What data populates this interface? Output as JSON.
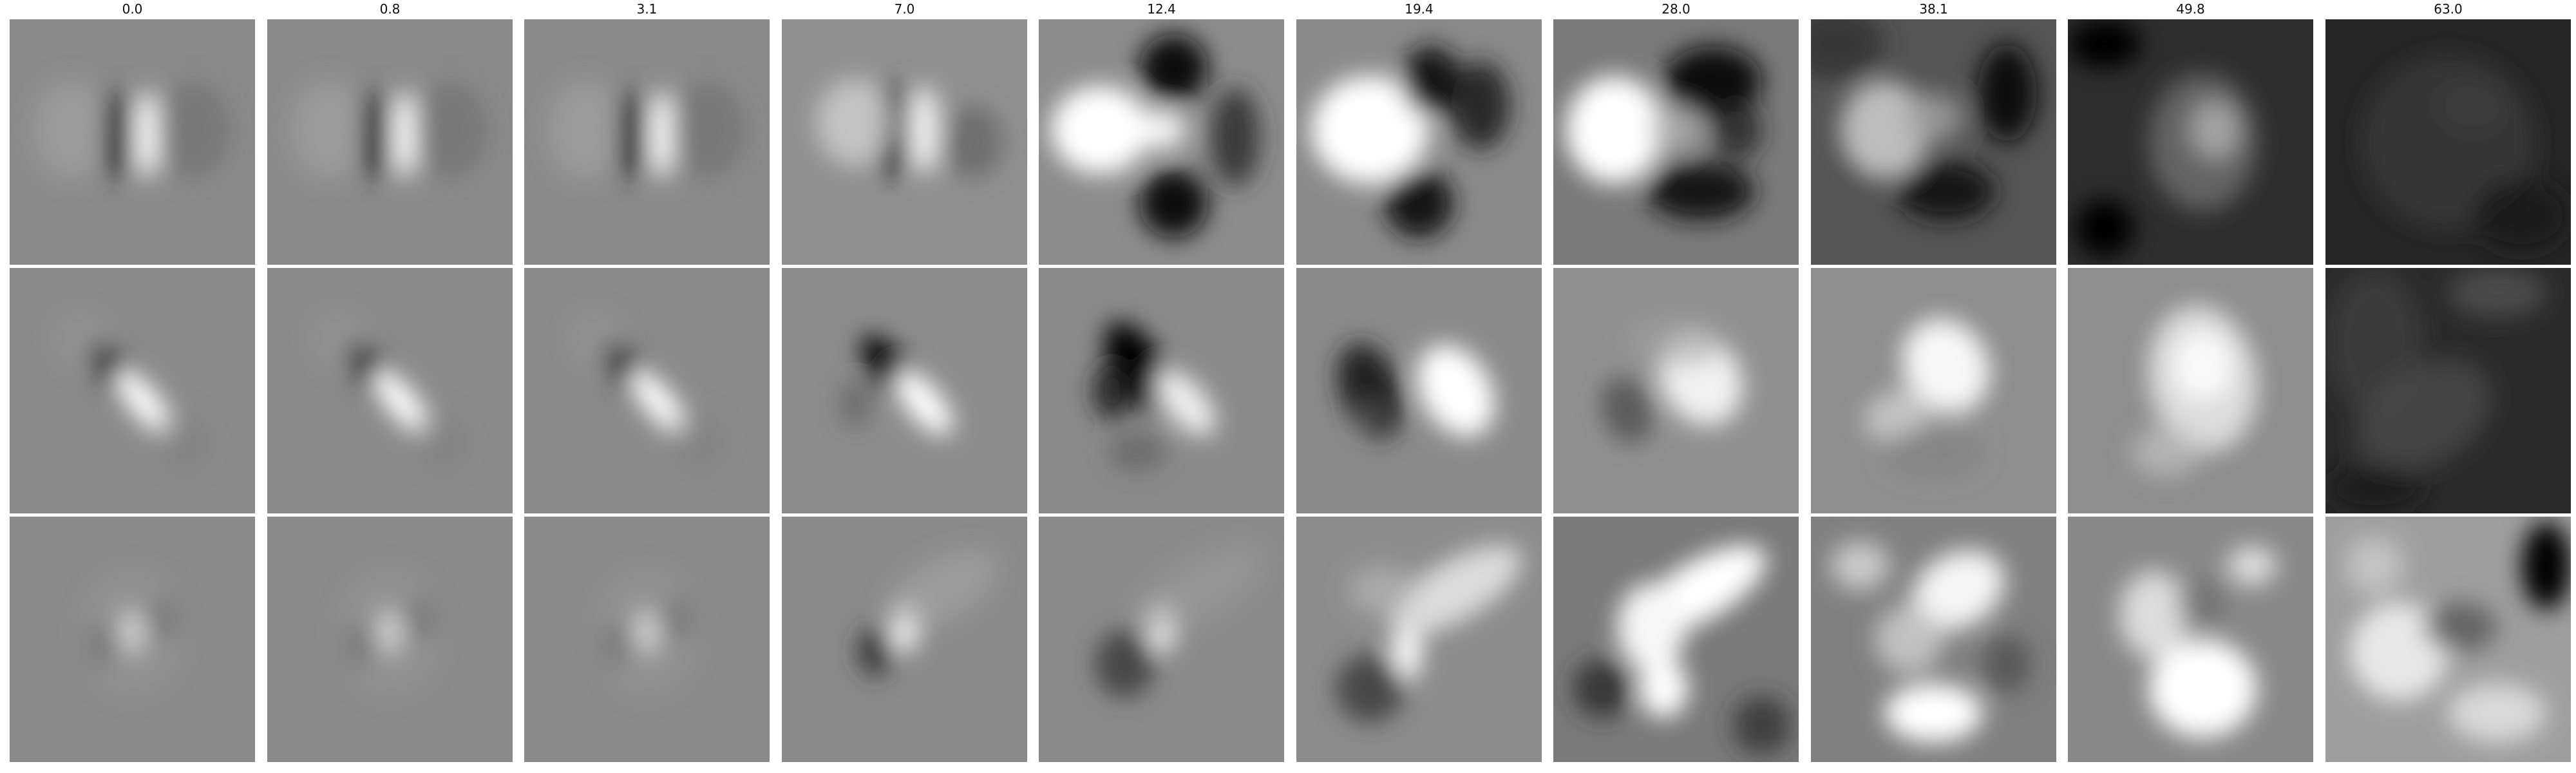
{
  "columns": [
    "0.0",
    "0.8",
    "3.1",
    "7.0",
    "12.4",
    "19.4",
    "28.0",
    "38.1",
    "49.8",
    "63.0"
  ],
  "rows": 3,
  "grid": [
    [
      {
        "bg": "#8a8a8a",
        "blobs": [
          [
            0.44,
            0.47,
            0.05,
            0.18,
            0,
            "#050505",
            1
          ],
          [
            0.56,
            0.47,
            0.05,
            0.18,
            0,
            "#ffffff",
            1
          ],
          [
            0.25,
            0.45,
            0.15,
            0.2,
            0,
            "#a6a6a6",
            0.6
          ],
          [
            0.75,
            0.45,
            0.15,
            0.2,
            0,
            "#6c6c6c",
            0.6
          ]
        ]
      },
      {
        "bg": "#8a8a8a",
        "blobs": [
          [
            0.44,
            0.47,
            0.05,
            0.18,
            0,
            "#050505",
            1
          ],
          [
            0.56,
            0.47,
            0.05,
            0.18,
            0,
            "#ffffff",
            1
          ],
          [
            0.25,
            0.45,
            0.15,
            0.2,
            0,
            "#a6a6a6",
            0.6
          ],
          [
            0.75,
            0.45,
            0.15,
            0.2,
            0,
            "#6c6c6c",
            0.6
          ]
        ]
      },
      {
        "bg": "#8a8a8a",
        "blobs": [
          [
            0.44,
            0.47,
            0.05,
            0.18,
            0,
            "#050505",
            1
          ],
          [
            0.56,
            0.47,
            0.05,
            0.18,
            0,
            "#ffffff",
            1
          ],
          [
            0.25,
            0.45,
            0.15,
            0.2,
            0,
            "#a6a6a6",
            0.6
          ],
          [
            0.75,
            0.45,
            0.15,
            0.2,
            0,
            "#6c6c6c",
            0.6
          ]
        ]
      },
      {
        "bg": "#909090",
        "blobs": [
          [
            0.45,
            0.45,
            0.06,
            0.2,
            0,
            "#101010",
            1
          ],
          [
            0.58,
            0.45,
            0.06,
            0.18,
            0,
            "#f5f5f5",
            1
          ],
          [
            0.3,
            0.42,
            0.16,
            0.18,
            0,
            "#d0d0d0",
            0.8
          ],
          [
            0.78,
            0.5,
            0.12,
            0.15,
            0,
            "#606060",
            0.7
          ]
        ]
      },
      {
        "bg": "#8c8c8c",
        "blobs": [
          [
            0.55,
            0.2,
            0.14,
            0.14,
            0,
            "#0a0a0a",
            1
          ],
          [
            0.55,
            0.75,
            0.14,
            0.14,
            0,
            "#0a0a0a",
            1
          ],
          [
            0.25,
            0.45,
            0.2,
            0.18,
            0,
            "#ffffff",
            1
          ],
          [
            0.5,
            0.45,
            0.1,
            0.08,
            0,
            "#ffffff",
            0.9
          ],
          [
            0.8,
            0.48,
            0.1,
            0.2,
            0,
            "#303030",
            0.9
          ]
        ]
      },
      {
        "bg": "#8a8a8a",
        "blobs": [
          [
            0.3,
            0.45,
            0.24,
            0.22,
            0,
            "#ffffff",
            1
          ],
          [
            0.55,
            0.25,
            0.12,
            0.14,
            0,
            "#151515",
            1
          ],
          [
            0.75,
            0.35,
            0.12,
            0.18,
            0,
            "#202020",
            0.9
          ],
          [
            0.5,
            0.75,
            0.14,
            0.14,
            0,
            "#151515",
            1
          ]
        ]
      },
      {
        "bg": "#7a7a7a",
        "blobs": [
          [
            0.25,
            0.45,
            0.2,
            0.22,
            0,
            "#ffffff",
            1
          ],
          [
            0.65,
            0.25,
            0.2,
            0.14,
            0,
            "#101010",
            1
          ],
          [
            0.6,
            0.7,
            0.22,
            0.12,
            0,
            "#151515",
            1
          ],
          [
            0.75,
            0.45,
            0.1,
            0.12,
            0,
            "#202020",
            0.8
          ],
          [
            0.5,
            0.45,
            0.1,
            0.1,
            0,
            "#b0b0b0",
            0.8
          ]
        ]
      },
      {
        "bg": "#555555",
        "blobs": [
          [
            0.3,
            0.45,
            0.18,
            0.2,
            0,
            "#bdbdbd",
            1
          ],
          [
            0.8,
            0.3,
            0.12,
            0.2,
            0,
            "#0a0a0a",
            1
          ],
          [
            0.55,
            0.7,
            0.2,
            0.12,
            0,
            "#151515",
            1
          ],
          [
            0.5,
            0.4,
            0.12,
            0.1,
            0,
            "#a0a0a0",
            0.8
          ],
          [
            0.1,
            0.1,
            0.2,
            0.15,
            0,
            "#303030",
            0.8
          ]
        ]
      },
      {
        "bg": "#2e2e2e",
        "blobs": [
          [
            0.55,
            0.5,
            0.22,
            0.28,
            0,
            "#6a6a6a",
            0.9
          ],
          [
            0.6,
            0.45,
            0.1,
            0.12,
            0,
            "#aaaaaa",
            0.9
          ],
          [
            0.15,
            0.85,
            0.12,
            0.12,
            0,
            "#000000",
            1
          ],
          [
            0.15,
            0.1,
            0.15,
            0.1,
            0,
            "#000000",
            1
          ]
        ]
      },
      {
        "bg": "#262626",
        "blobs": [
          [
            0.5,
            0.5,
            0.35,
            0.35,
            0,
            "#363636",
            0.9
          ],
          [
            0.6,
            0.35,
            0.15,
            0.12,
            0,
            "#3e3e3e",
            0.8
          ],
          [
            0.8,
            0.8,
            0.2,
            0.15,
            0,
            "#1a1a1a",
            0.8
          ]
        ]
      }
    ],
    [
      {
        "bg": "#8a8a8a",
        "blobs": [
          [
            0.44,
            0.44,
            0.06,
            0.17,
            -40,
            "#000000",
            1
          ],
          [
            0.55,
            0.55,
            0.06,
            0.17,
            -40,
            "#ffffff",
            1
          ],
          [
            0.3,
            0.3,
            0.1,
            0.12,
            -40,
            "#9a9a9a",
            0.5
          ],
          [
            0.7,
            0.7,
            0.1,
            0.12,
            -40,
            "#7a7a7a",
            0.5
          ]
        ]
      },
      {
        "bg": "#8a8a8a",
        "blobs": [
          [
            0.44,
            0.44,
            0.06,
            0.17,
            -40,
            "#000000",
            1
          ],
          [
            0.55,
            0.55,
            0.06,
            0.17,
            -40,
            "#ffffff",
            1
          ],
          [
            0.3,
            0.3,
            0.1,
            0.12,
            -40,
            "#9a9a9a",
            0.5
          ],
          [
            0.7,
            0.7,
            0.1,
            0.12,
            -40,
            "#7a7a7a",
            0.5
          ]
        ]
      },
      {
        "bg": "#8a8a8a",
        "blobs": [
          [
            0.44,
            0.44,
            0.06,
            0.17,
            -40,
            "#000000",
            1
          ],
          [
            0.55,
            0.55,
            0.06,
            0.17,
            -40,
            "#ffffff",
            1
          ],
          [
            0.3,
            0.3,
            0.1,
            0.12,
            -40,
            "#9a9a9a",
            0.5
          ],
          [
            0.7,
            0.7,
            0.1,
            0.12,
            -40,
            "#7a7a7a",
            0.5
          ]
        ]
      },
      {
        "bg": "#8c8c8c",
        "blobs": [
          [
            0.45,
            0.42,
            0.07,
            0.18,
            -40,
            "#050505",
            1
          ],
          [
            0.58,
            0.55,
            0.07,
            0.16,
            -40,
            "#ffffff",
            1
          ],
          [
            0.3,
            0.55,
            0.06,
            0.1,
            0,
            "#555555",
            0.6
          ]
        ]
      },
      {
        "bg": "#8a8a8a",
        "blobs": [
          [
            0.4,
            0.4,
            0.1,
            0.2,
            -30,
            "#000000",
            1
          ],
          [
            0.3,
            0.5,
            0.08,
            0.12,
            0,
            "#202020",
            0.9
          ],
          [
            0.6,
            0.55,
            0.08,
            0.16,
            -40,
            "#f0f0f0",
            1
          ],
          [
            0.4,
            0.75,
            0.12,
            0.08,
            0,
            "#606060",
            0.7
          ]
        ]
      },
      {
        "bg": "#8a8a8a",
        "blobs": [
          [
            0.3,
            0.5,
            0.12,
            0.2,
            -20,
            "#202020",
            1
          ],
          [
            0.65,
            0.5,
            0.14,
            0.2,
            -30,
            "#ffffff",
            1
          ],
          [
            0.3,
            0.6,
            0.06,
            0.06,
            0,
            "#606060",
            0.7
          ]
        ]
      },
      {
        "bg": "#909090",
        "blobs": [
          [
            0.6,
            0.45,
            0.16,
            0.2,
            -30,
            "#f2f2f2",
            1
          ],
          [
            0.3,
            0.58,
            0.1,
            0.14,
            -20,
            "#555555",
            0.9
          ],
          [
            0.5,
            0.3,
            0.2,
            0.1,
            0,
            "#a0a0a0",
            0.6
          ]
        ]
      },
      {
        "bg": "#8e8e8e",
        "blobs": [
          [
            0.55,
            0.4,
            0.17,
            0.2,
            -30,
            "#f7f7f7",
            1
          ],
          [
            0.35,
            0.6,
            0.14,
            0.1,
            -20,
            "#d0d0d0",
            0.8
          ],
          [
            0.5,
            0.75,
            0.2,
            0.1,
            0,
            "#808080",
            0.7
          ]
        ]
      },
      {
        "bg": "#8e8e8e",
        "blobs": [
          [
            0.55,
            0.45,
            0.22,
            0.3,
            -10,
            "#dcdcdc",
            1
          ],
          [
            0.55,
            0.4,
            0.12,
            0.14,
            0,
            "#fafafa",
            1
          ],
          [
            0.4,
            0.75,
            0.14,
            0.1,
            0,
            "#bbbbbb",
            0.8
          ]
        ]
      },
      {
        "bg": "#2a2a2a",
        "blobs": [
          [
            0.2,
            0.3,
            0.2,
            0.3,
            0,
            "#3e3e3e",
            0.8
          ],
          [
            0.4,
            0.6,
            0.3,
            0.2,
            -30,
            "#4a4a4a",
            0.8
          ],
          [
            0.7,
            0.1,
            0.2,
            0.1,
            0,
            "#5a5a5a",
            0.7
          ],
          [
            0.2,
            0.9,
            0.2,
            0.1,
            0,
            "#1a1a1a",
            0.8
          ]
        ]
      }
    ],
    [
      {
        "bg": "#8a8a8a",
        "blobs": [
          [
            0.5,
            0.47,
            0.06,
            0.09,
            0,
            "#ffffff",
            1
          ],
          [
            0.38,
            0.52,
            0.06,
            0.09,
            0,
            "#4a4a4a",
            0.8
          ],
          [
            0.62,
            0.42,
            0.06,
            0.09,
            0,
            "#4a4a4a",
            0.8
          ],
          [
            0.5,
            0.47,
            0.2,
            0.25,
            0,
            "#999999",
            0.5
          ]
        ]
      },
      {
        "bg": "#8a8a8a",
        "blobs": [
          [
            0.5,
            0.47,
            0.06,
            0.09,
            0,
            "#ffffff",
            1
          ],
          [
            0.38,
            0.52,
            0.06,
            0.09,
            0,
            "#4a4a4a",
            0.8
          ],
          [
            0.62,
            0.42,
            0.06,
            0.09,
            0,
            "#4a4a4a",
            0.8
          ],
          [
            0.5,
            0.47,
            0.2,
            0.25,
            0,
            "#999999",
            0.5
          ]
        ]
      },
      {
        "bg": "#8a8a8a",
        "blobs": [
          [
            0.5,
            0.47,
            0.06,
            0.09,
            0,
            "#ffffff",
            1
          ],
          [
            0.38,
            0.52,
            0.06,
            0.09,
            0,
            "#4a4a4a",
            0.8
          ],
          [
            0.62,
            0.42,
            0.06,
            0.09,
            0,
            "#4a4a4a",
            0.8
          ],
          [
            0.5,
            0.47,
            0.2,
            0.25,
            0,
            "#999999",
            0.5
          ]
        ]
      },
      {
        "bg": "#8a8a8a",
        "blobs": [
          [
            0.5,
            0.45,
            0.06,
            0.1,
            0,
            "#ffffff",
            1
          ],
          [
            0.38,
            0.55,
            0.07,
            0.1,
            0,
            "#303030",
            0.9
          ],
          [
            0.65,
            0.3,
            0.25,
            0.12,
            -30,
            "#a8a8a8",
            0.6
          ]
        ]
      },
      {
        "bg": "#8a8a8a",
        "blobs": [
          [
            0.5,
            0.45,
            0.06,
            0.1,
            0,
            "#ffffff",
            1
          ],
          [
            0.35,
            0.6,
            0.12,
            0.14,
            0,
            "#404040",
            0.9
          ],
          [
            0.65,
            0.3,
            0.3,
            0.12,
            -30,
            "#9c9c9c",
            0.6
          ]
        ]
      },
      {
        "bg": "#8c8c8c",
        "blobs": [
          [
            0.45,
            0.55,
            0.06,
            0.12,
            0,
            "#ffffff",
            1
          ],
          [
            0.65,
            0.3,
            0.3,
            0.12,
            -30,
            "#dcdcdc",
            1
          ],
          [
            0.3,
            0.7,
            0.14,
            0.14,
            0,
            "#404040",
            0.9
          ],
          [
            0.35,
            0.3,
            0.14,
            0.1,
            0,
            "#b5b5b5",
            0.7
          ]
        ]
      },
      {
        "bg": "#7a7a7a",
        "blobs": [
          [
            0.6,
            0.3,
            0.3,
            0.12,
            -30,
            "#ffffff",
            1
          ],
          [
            0.4,
            0.45,
            0.14,
            0.18,
            0,
            "#f7f7f7",
            1
          ],
          [
            0.45,
            0.7,
            0.1,
            0.12,
            0,
            "#ffffff",
            1
          ],
          [
            0.2,
            0.7,
            0.12,
            0.12,
            0,
            "#303030",
            0.9
          ],
          [
            0.85,
            0.85,
            0.12,
            0.12,
            0,
            "#303030",
            0.8
          ]
        ]
      },
      {
        "bg": "#808080",
        "blobs": [
          [
            0.6,
            0.3,
            0.2,
            0.15,
            -30,
            "#f5f5f5",
            1
          ],
          [
            0.4,
            0.5,
            0.14,
            0.14,
            0,
            "#c8c8c8",
            0.9
          ],
          [
            0.5,
            0.8,
            0.2,
            0.12,
            0,
            "#ffffff",
            1
          ],
          [
            0.2,
            0.2,
            0.12,
            0.1,
            0,
            "#dcdcdc",
            0.8
          ],
          [
            0.8,
            0.6,
            0.1,
            0.12,
            0,
            "#505050",
            0.8
          ]
        ]
      },
      {
        "bg": "#888888",
        "blobs": [
          [
            0.55,
            0.7,
            0.22,
            0.2,
            0,
            "#ffffff",
            1
          ],
          [
            0.35,
            0.4,
            0.14,
            0.18,
            0,
            "#dcdcdc",
            1
          ],
          [
            0.75,
            0.2,
            0.1,
            0.08,
            0,
            "#e8e8e8",
            0.9
          ],
          [
            0.55,
            0.35,
            0.1,
            0.1,
            0,
            "#707070",
            0.8
          ]
        ]
      },
      {
        "bg": "#9e9e9e",
        "blobs": [
          [
            0.3,
            0.55,
            0.2,
            0.2,
            0,
            "#e8e8e8",
            1
          ],
          [
            0.9,
            0.2,
            0.1,
            0.18,
            0,
            "#050505",
            1
          ],
          [
            0.55,
            0.45,
            0.15,
            0.1,
            0,
            "#555555",
            0.8
          ],
          [
            0.7,
            0.8,
            0.2,
            0.12,
            0,
            "#e0e0e0",
            0.9
          ],
          [
            0.2,
            0.2,
            0.12,
            0.12,
            0,
            "#cccccc",
            0.8
          ]
        ]
      }
    ]
  ]
}
